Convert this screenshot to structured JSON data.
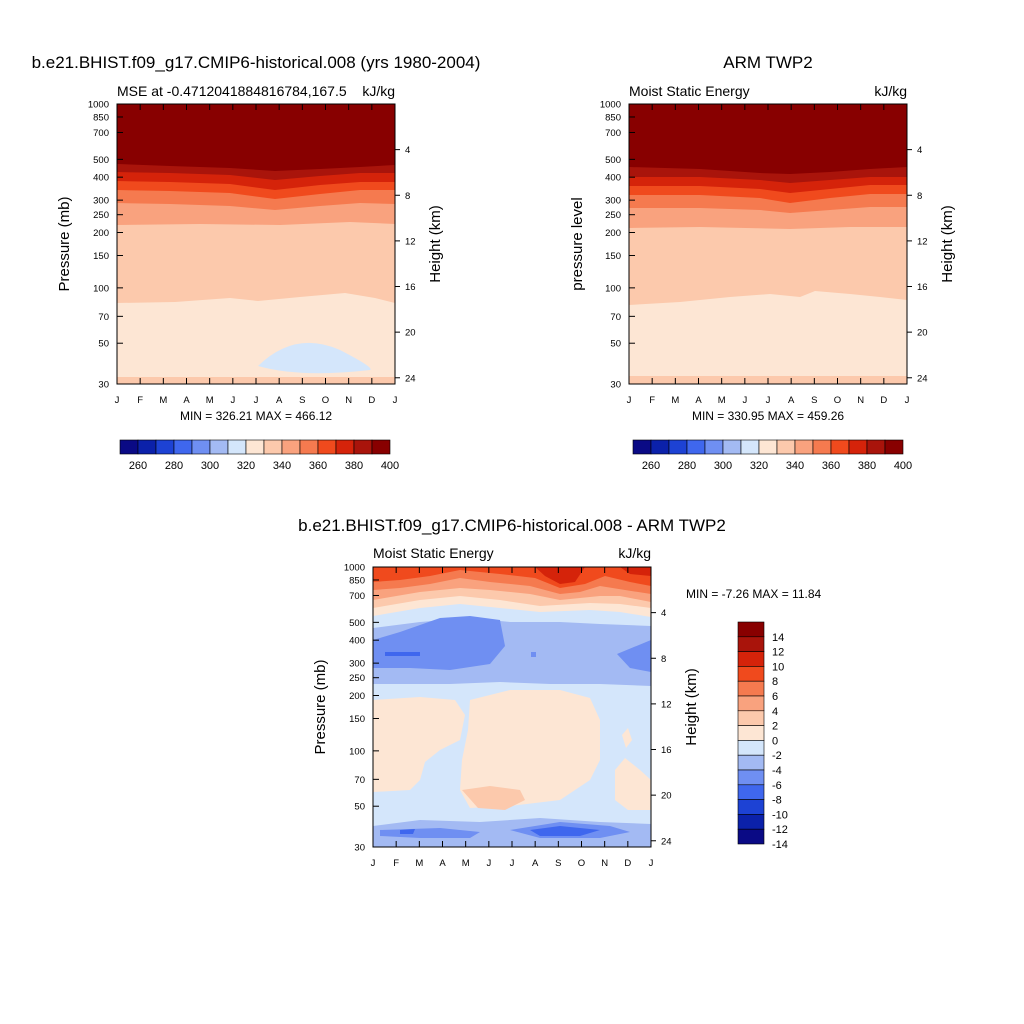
{
  "chart_data": [
    {
      "type": "heatmap",
      "title": "b.e21.BHIST.f09_g17.CMIP6-historical.008 (yrs 1980-2004)",
      "subtitle_left": "MSE at -0.4712041884816784,167.5",
      "subtitle_right": "kJ/kg",
      "ylabel": "Pressure (mb)",
      "ylabel_right": "Height (km)",
      "x_ticks": [
        "J",
        "F",
        "M",
        "A",
        "M",
        "J",
        "J",
        "A",
        "S",
        "O",
        "N",
        "D",
        "J"
      ],
      "y_ticks": [
        30,
        50,
        70,
        100,
        150,
        200,
        250,
        300,
        400,
        500,
        700,
        850,
        1000
      ],
      "y2_ticks": [
        24,
        20,
        16,
        12,
        8,
        4
      ],
      "ylim": [
        1000,
        30
      ],
      "stats": "MIN = 326.21 MAX = 466.12",
      "colorbar": {
        "labels": [
          260,
          280,
          300,
          320,
          340,
          360,
          380,
          400
        ],
        "orientation": "horizontal"
      }
    },
    {
      "type": "heatmap",
      "title": "ARM TWP2",
      "subtitle_left": "Moist Static Energy",
      "subtitle_right": "kJ/kg",
      "ylabel": "pressure level",
      "ylabel_right": "Height (km)",
      "x_ticks": [
        "J",
        "F",
        "M",
        "A",
        "M",
        "J",
        "J",
        "A",
        "S",
        "O",
        "N",
        "D",
        "J"
      ],
      "y_ticks": [
        30,
        50,
        70,
        100,
        150,
        200,
        250,
        300,
        400,
        500,
        700,
        850,
        1000
      ],
      "y2_ticks": [
        24,
        20,
        16,
        12,
        8,
        4
      ],
      "ylim": [
        1000,
        30
      ],
      "stats": "MIN = 330.95 MAX = 459.26",
      "colorbar": {
        "labels": [
          260,
          280,
          300,
          320,
          340,
          360,
          380,
          400
        ],
        "orientation": "horizontal"
      }
    },
    {
      "type": "heatmap",
      "title": "b.e21.BHIST.f09_g17.CMIP6-historical.008 - ARM TWP2",
      "subtitle_left": "Moist Static Energy",
      "subtitle_right": "kJ/kg",
      "ylabel": "Pressure (mb)",
      "ylabel_right": "Height (km)",
      "x_ticks": [
        "J",
        "F",
        "M",
        "A",
        "M",
        "J",
        "J",
        "A",
        "S",
        "O",
        "N",
        "D",
        "J"
      ],
      "y_ticks": [
        30,
        50,
        70,
        100,
        150,
        200,
        250,
        300,
        400,
        500,
        700,
        850,
        1000
      ],
      "y2_ticks": [
        24,
        20,
        16,
        12,
        8,
        4
      ],
      "ylim": [
        1000,
        30
      ],
      "stats": "MIN =  -7.26 MAX =  11.84",
      "colorbar": {
        "labels": [
          14,
          12,
          10,
          8,
          6,
          4,
          2,
          0,
          -2,
          -4,
          -6,
          -8,
          -10,
          -12,
          -14
        ],
        "orientation": "vertical"
      }
    }
  ],
  "colors": {
    "abs_scale": [
      "#0a0a85",
      "#0b21aa",
      "#1d42d4",
      "#3f67ee",
      "#6f8ff2",
      "#a3baf3",
      "#d4e6fb",
      "#fde6d4",
      "#fcc9ac",
      "#f9a27e",
      "#f57a4f",
      "#f04a1d",
      "#d5230a",
      "#a9140b",
      "#880000"
    ],
    "diff_scale": [
      "#880000",
      "#a9140b",
      "#d5230a",
      "#f04a1d",
      "#f57a4f",
      "#f9a27e",
      "#fcc9ac",
      "#fde6d4",
      "#d4e6fb",
      "#a3baf3",
      "#6f8ff2",
      "#3f67ee",
      "#1d42d4",
      "#0b21aa",
      "#0a0a85"
    ]
  }
}
